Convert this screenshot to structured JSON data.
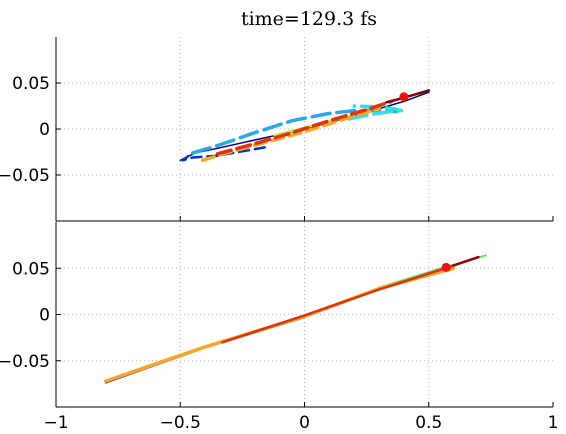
{
  "title": "time=129.3 fs",
  "chart_data": [
    {
      "type": "line",
      "panel": "top",
      "xlim": [
        -1,
        1
      ],
      "ylim": [
        -0.1,
        0.1
      ],
      "xticks": [
        -1,
        -0.5,
        0,
        0.5,
        1
      ],
      "yticks": [
        -0.05,
        0,
        0.05
      ],
      "ytick_labels": [
        "−0.05",
        "0",
        "0.05"
      ],
      "grid": true,
      "series": [
        {
          "color": "#000088",
          "width": 1.5,
          "dash": "",
          "points": [
            [
              -0.5,
              -0.034
            ],
            [
              -0.44,
              -0.026
            ],
            [
              -0.35,
              -0.021
            ],
            [
              -0.2,
              -0.012
            ],
            [
              -0.05,
              -0.003
            ],
            [
              0.1,
              0.007
            ],
            [
              0.25,
              0.018
            ],
            [
              0.4,
              0.03
            ],
            [
              0.5,
              0.04
            ]
          ]
        },
        {
          "color": "#0033cc",
          "width": 2.5,
          "dash": "10,6",
          "points": [
            [
              -0.16,
              -0.02
            ],
            [
              -0.35,
              -0.029
            ],
            [
              -0.45,
              -0.031
            ],
            [
              -0.49,
              -0.034
            ],
            [
              -0.45,
              -0.026
            ]
          ]
        },
        {
          "color": "#2aa7e6",
          "width": 3.5,
          "dash": "18,7",
          "points": [
            [
              -0.45,
              -0.026
            ],
            [
              -0.35,
              -0.018
            ],
            [
              -0.2,
              -0.004
            ],
            [
              -0.05,
              0.009
            ],
            [
              0.1,
              0.017
            ],
            [
              0.2,
              0.02
            ],
            [
              0.3,
              0.02
            ],
            [
              0.37,
              0.019
            ]
          ]
        },
        {
          "color": "#33e0e6",
          "width": 3.5,
          "dash": "18,7",
          "points": [
            [
              0.18,
              0.011
            ],
            [
              0.27,
              0.016
            ],
            [
              0.35,
              0.019
            ],
            [
              0.39,
              0.02
            ],
            [
              0.36,
              0.022
            ],
            [
              0.3,
              0.024
            ],
            [
              0.2,
              0.025
            ]
          ]
        },
        {
          "color": "#c9e84a",
          "width": 2.5,
          "dash": "",
          "points": [
            [
              -0.12,
              -0.007
            ],
            [
              0.05,
              0.005
            ],
            [
              0.2,
              0.015
            ]
          ]
        },
        {
          "color": "#f5a623",
          "width": 3.5,
          "dash": "12,6",
          "points": [
            [
              -0.41,
              -0.034
            ],
            [
              -0.3,
              -0.025
            ],
            [
              -0.15,
              -0.014
            ],
            [
              0.0,
              -0.003
            ],
            [
              0.15,
              0.01
            ],
            [
              0.3,
              0.022
            ]
          ]
        },
        {
          "color": "#dd3311",
          "width": 3.5,
          "dash": "14,6",
          "points": [
            [
              -0.35,
              -0.027
            ],
            [
              -0.2,
              -0.016
            ],
            [
              -0.05,
              -0.004
            ],
            [
              0.1,
              0.009
            ],
            [
              0.25,
              0.021
            ],
            [
              0.35,
              0.03
            ]
          ]
        },
        {
          "color": "#800000",
          "width": 2.5,
          "dash": "",
          "points": [
            [
              0.33,
              0.029
            ],
            [
              0.4,
              0.034
            ],
            [
              0.5,
              0.042
            ]
          ]
        }
      ],
      "marker": {
        "x": 0.4,
        "y": 0.035,
        "color": "#ee1111"
      }
    },
    {
      "type": "line",
      "panel": "bottom",
      "xlim": [
        -1,
        1
      ],
      "ylim": [
        -0.1,
        0.1
      ],
      "xticks": [
        -1,
        -0.5,
        0,
        0.5,
        1
      ],
      "xtick_labels": [
        "−1",
        "−0.5",
        "0",
        "0.5",
        "1"
      ],
      "yticks": [
        -0.05,
        0,
        0.05
      ],
      "ytick_labels": [
        "−0.05",
        "0",
        "0.05"
      ],
      "grid": true,
      "series": [
        {
          "color": "#2233bb",
          "width": 1.5,
          "dash": "",
          "points": [
            [
              -0.8,
              -0.074
            ],
            [
              -0.4,
              -0.036
            ],
            [
              -0.02,
              -0.005
            ]
          ]
        },
        {
          "color": "#5ce65c",
          "width": 2,
          "dash": "",
          "points": [
            [
              0.3,
              0.029
            ],
            [
              0.55,
              0.05
            ],
            [
              0.73,
              0.064
            ]
          ]
        },
        {
          "color": "#f5a623",
          "width": 3.5,
          "dash": "",
          "points": [
            [
              -0.8,
              -0.072
            ],
            [
              -0.4,
              -0.035
            ],
            [
              0.0,
              -0.002
            ],
            [
              0.3,
              0.028
            ],
            [
              0.6,
              0.05
            ]
          ]
        },
        {
          "color": "#dd3311",
          "width": 2.5,
          "dash": "",
          "points": [
            [
              -0.33,
              -0.03
            ],
            [
              0.0,
              -0.001
            ],
            [
              0.3,
              0.027
            ],
            [
              0.6,
              0.053
            ]
          ]
        },
        {
          "color": "#990000",
          "width": 2.5,
          "dash": "",
          "points": [
            [
              0.6,
              0.053
            ],
            [
              0.7,
              0.062
            ]
          ]
        }
      ],
      "marker": {
        "x": 0.57,
        "y": 0.051,
        "color": "#ee1111"
      }
    }
  ]
}
